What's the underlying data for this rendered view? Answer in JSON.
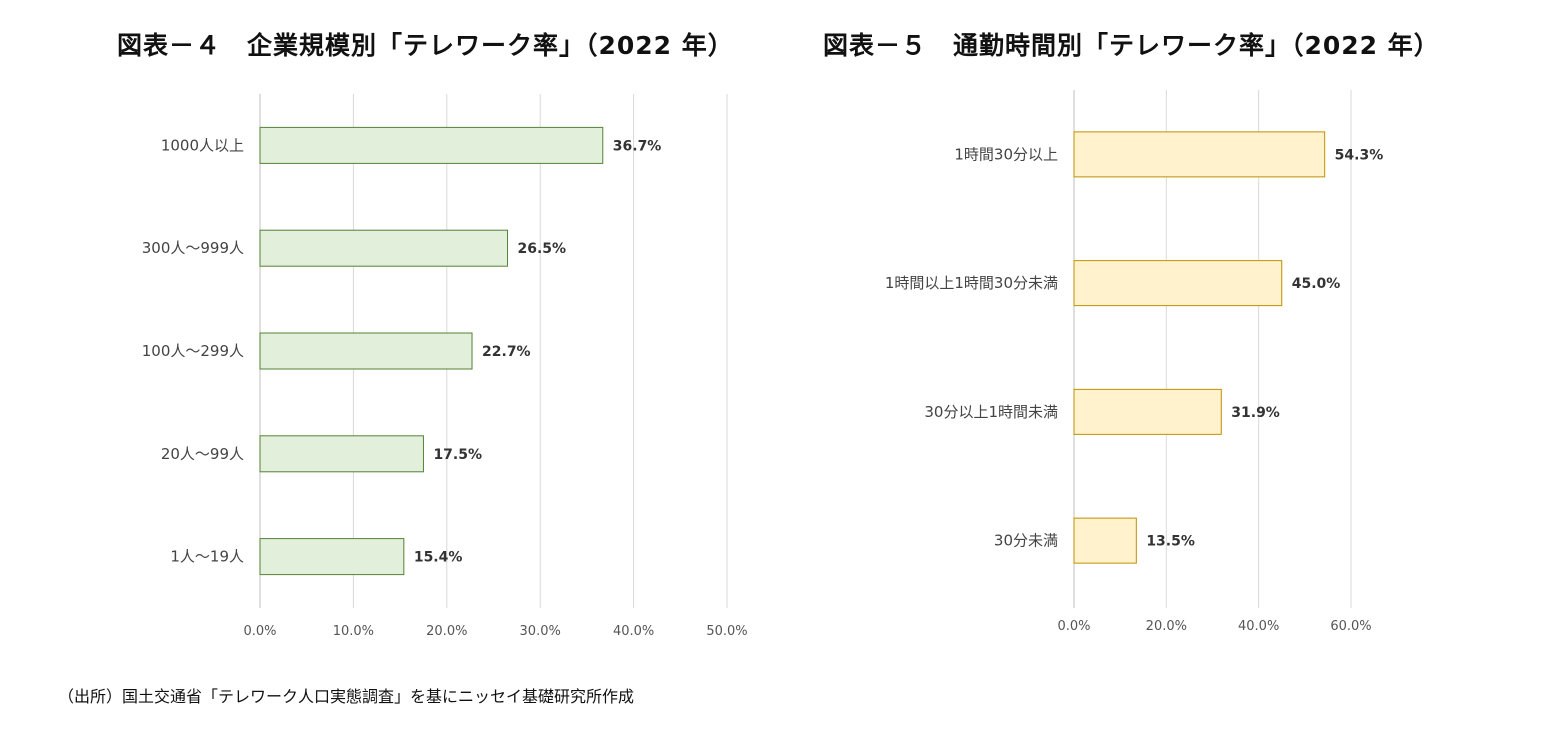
{
  "chart_data": [
    {
      "type": "bar",
      "orientation": "horizontal",
      "title": "図表－４　企業規模別「テレワーク率」（2022 年）",
      "categories": [
        "1000人以上",
        "300人～999人",
        "100人～299人",
        "20人～99人",
        "1人～19人"
      ],
      "values": [
        36.7,
        26.5,
        22.7,
        17.5,
        15.4
      ],
      "value_labels": [
        "36.7%",
        "26.5%",
        "22.7%",
        "17.5%",
        "15.4%"
      ],
      "xlim": [
        0,
        50
      ],
      "xticks": [
        0,
        10,
        20,
        30,
        40,
        50
      ],
      "xtick_labels": [
        "0.0%",
        "10.0%",
        "20.0%",
        "30.0%",
        "40.0%",
        "50.0%"
      ],
      "grid": true,
      "bar_fill": "#e2efda",
      "bar_stroke": "#548235"
    },
    {
      "type": "bar",
      "orientation": "horizontal",
      "title": "図表－５　通勤時間別「テレワーク率」（2022 年）",
      "categories": [
        "1時間30分以上",
        "1時間以上1時間30分未満",
        "30分以上1時間未満",
        "30分未満"
      ],
      "values": [
        54.3,
        45.0,
        31.9,
        13.5
      ],
      "value_labels": [
        "54.3%",
        "45.0%",
        "31.9%",
        "13.5%"
      ],
      "xlim": [
        0,
        60
      ],
      "xticks": [
        0,
        20,
        40,
        60
      ],
      "xtick_labels": [
        "0.0%",
        "20.0%",
        "40.0%",
        "60.0%"
      ],
      "grid": true,
      "bar_fill": "#fff2cc",
      "bar_stroke": "#bf9000"
    }
  ],
  "source": "（出所）国土交通省「テレワーク人口実態調査」を基にニッセイ基礎研究所作成"
}
